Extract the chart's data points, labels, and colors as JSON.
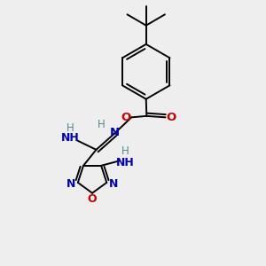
{
  "bg_color": "#eeeeee",
  "atom_colors": {
    "C": "#000000",
    "N": "#0000bb",
    "O": "#cc0000",
    "H": "#558888"
  },
  "bond_color": "#000000",
  "figsize": [
    3.0,
    3.0
  ],
  "dpi": 100,
  "lw": 1.4
}
